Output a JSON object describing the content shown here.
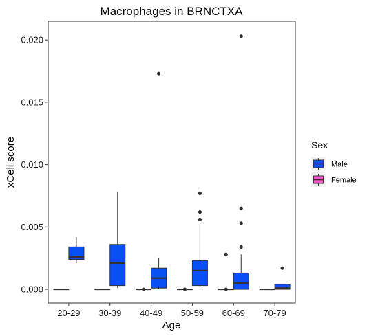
{
  "chart_data": {
    "type": "box",
    "title": "Macrophages in BRNCTXA",
    "xlabel": "Age",
    "ylabel": "xCell score",
    "categories": [
      "20-29",
      "30-39",
      "40-49",
      "50-59",
      "60-69",
      "70-79"
    ],
    "y_ticks": [
      "0.000",
      "0.005",
      "0.010",
      "0.015",
      "0.020"
    ],
    "ylim": [
      -0.0011,
      0.0215
    ],
    "grid": false,
    "legend": {
      "title": "Sex",
      "position": "right",
      "entries": [
        {
          "label": "Male",
          "color": "#0a4ff5"
        },
        {
          "label": "Female",
          "color": "#f558c8"
        }
      ]
    },
    "series": [
      {
        "name": "Female",
        "color": "#f558c8",
        "boxes": [
          {
            "category": "20-29",
            "min": 0.0,
            "q1": 0.0,
            "median": 0.0,
            "q3": 0.0,
            "max": 0.0,
            "outliers": []
          },
          {
            "category": "30-39",
            "min": 0.0,
            "q1": 0.0,
            "median": 0.0,
            "q3": 0.0,
            "max": 0.0,
            "outliers": []
          },
          {
            "category": "40-49",
            "min": 0.0,
            "q1": 0.0,
            "median": 0.0,
            "q3": 0.0,
            "max": 0.0,
            "outliers": [
              0.0
            ]
          },
          {
            "category": "50-59",
            "min": 0.0,
            "q1": 0.0,
            "median": 0.0,
            "q3": 0.0,
            "max": 0.0,
            "outliers": [
              0.0
            ]
          },
          {
            "category": "60-69",
            "min": 0.0,
            "q1": 0.0,
            "median": 0.0,
            "q3": 0.0,
            "max": 0.0,
            "outliers": [
              0.0,
              0.0028
            ]
          },
          {
            "category": "70-79",
            "min": 0.0,
            "q1": 0.0,
            "median": 0.0,
            "q3": 0.0,
            "max": 0.0,
            "outliers": []
          }
        ]
      },
      {
        "name": "Male",
        "color": "#0a4ff5",
        "boxes": [
          {
            "category": "20-29",
            "min": 0.0021,
            "q1": 0.0024,
            "median": 0.0026,
            "q3": 0.0034,
            "max": 0.0042,
            "outliers": []
          },
          {
            "category": "30-39",
            "min": 0.0001,
            "q1": 0.0003,
            "median": 0.0021,
            "q3": 0.0036,
            "max": 0.0078,
            "outliers": []
          },
          {
            "category": "40-49",
            "min": 0.0,
            "q1": 0.0001,
            "median": 0.0009,
            "q3": 0.0017,
            "max": 0.0025,
            "outliers": [
              0.0173
            ]
          },
          {
            "category": "50-59",
            "min": 0.0001,
            "q1": 0.0003,
            "median": 0.0015,
            "q3": 0.0023,
            "max": 0.0052,
            "outliers": [
              0.0056,
              0.0062,
              0.0077
            ]
          },
          {
            "category": "60-69",
            "min": 0.0,
            "q1": 0.0,
            "median": 0.0005,
            "q3": 0.0013,
            "max": 0.0028,
            "outliers": [
              0.0034,
              0.0053,
              0.0065,
              0.0203
            ]
          },
          {
            "category": "70-79",
            "min": 0.0,
            "q1": 0.0,
            "median": 0.0001,
            "q3": 0.0004,
            "max": 0.0004,
            "outliers": [
              0.0017
            ]
          }
        ]
      }
    ]
  }
}
